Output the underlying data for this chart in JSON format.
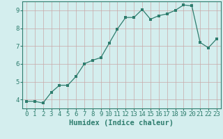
{
  "x": [
    0,
    1,
    2,
    3,
    4,
    5,
    6,
    7,
    8,
    9,
    10,
    11,
    12,
    13,
    14,
    15,
    16,
    17,
    18,
    19,
    20,
    21,
    22,
    23
  ],
  "y": [
    3.9,
    3.9,
    3.8,
    4.4,
    4.8,
    4.8,
    5.3,
    6.0,
    6.2,
    6.35,
    7.15,
    7.95,
    8.6,
    8.6,
    9.05,
    8.5,
    8.7,
    8.8,
    9.0,
    9.3,
    9.25,
    7.2,
    6.9,
    7.4
  ],
  "line_color": "#2e7d6e",
  "marker": "s",
  "marker_size": 2.2,
  "bg_color": "#d4eeee",
  "grid_color": "#c8a8a8",
  "xlabel": "Humidex (Indice chaleur)",
  "xlim": [
    -0.5,
    23.5
  ],
  "ylim": [
    3.5,
    9.5
  ],
  "yticks": [
    4,
    5,
    6,
    7,
    8,
    9
  ],
  "xticks": [
    0,
    1,
    2,
    3,
    4,
    5,
    6,
    7,
    8,
    9,
    10,
    11,
    12,
    13,
    14,
    15,
    16,
    17,
    18,
    19,
    20,
    21,
    22,
    23
  ],
  "tick_color": "#2e7d6e",
  "label_color": "#2e7d6e",
  "spine_color": "#2e7d6e",
  "font_size_ticks": 6.5,
  "font_size_xlabel": 7.5
}
